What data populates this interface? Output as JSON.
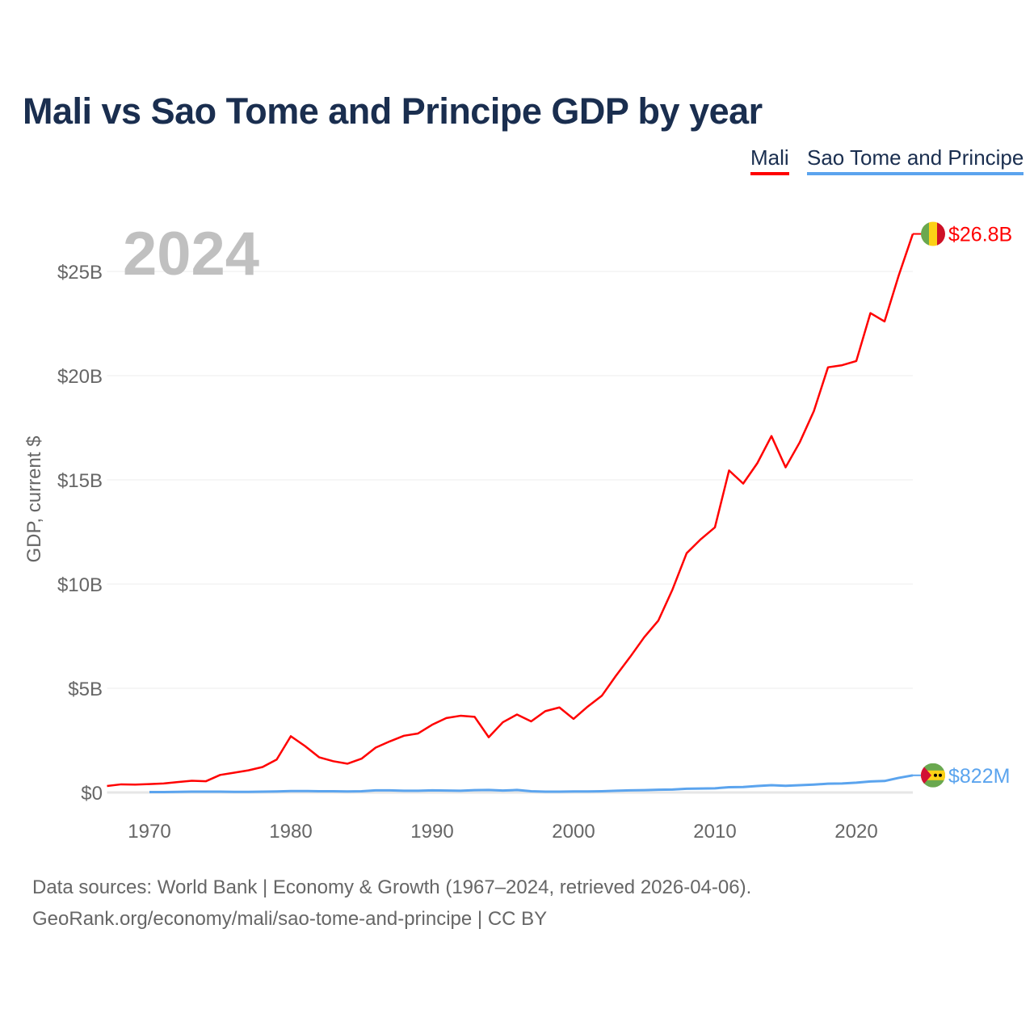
{
  "chart_data": {
    "type": "line",
    "title": "Mali vs Sao Tome and Principe GDP by year",
    "xlabel": "",
    "ylabel": "GDP, current $",
    "xlim": [
      1967,
      2024
    ],
    "ylim": [
      0,
      28
    ],
    "x_ticks": [
      1970,
      1980,
      1990,
      2000,
      2010,
      2020
    ],
    "y_ticks": [
      0,
      5,
      10,
      15,
      20,
      25
    ],
    "y_tick_labels": [
      "$0",
      "$5B",
      "$10B",
      "$15B",
      "$20B",
      "$25B"
    ],
    "year_watermark": "2024",
    "grid": true,
    "legend_position": "top-right",
    "series": [
      {
        "name": "Mali",
        "color": "#ff0000",
        "start_year": 1967,
        "end_label": "$26.8B",
        "flag": "mali-flag",
        "values": [
          0.31,
          0.39,
          0.38,
          0.4,
          0.43,
          0.5,
          0.56,
          0.54,
          0.84,
          0.95,
          1.06,
          1.22,
          1.58,
          2.7,
          2.23,
          1.69,
          1.5,
          1.38,
          1.62,
          2.15,
          2.45,
          2.72,
          2.83,
          3.25,
          3.57,
          3.68,
          3.63,
          2.65,
          3.37,
          3.74,
          3.41,
          3.9,
          4.08,
          3.53,
          4.12,
          4.64,
          5.6,
          6.5,
          7.45,
          8.25,
          9.74,
          11.48,
          12.15,
          12.72,
          15.45,
          14.82,
          15.8,
          17.1,
          15.6,
          16.8,
          18.3,
          20.4,
          20.5,
          20.7,
          23.0,
          22.6,
          24.8,
          26.8
        ]
      },
      {
        "name": "Sao Tome and Principe",
        "color": "#5ba4ee",
        "start_year": 1970,
        "end_label": "$822M",
        "flag": "sao-tome-flag",
        "values": [
          0.02,
          0.02,
          0.03,
          0.04,
          0.04,
          0.04,
          0.03,
          0.03,
          0.04,
          0.05,
          0.07,
          0.07,
          0.06,
          0.06,
          0.05,
          0.06,
          0.1,
          0.1,
          0.08,
          0.08,
          0.1,
          0.09,
          0.08,
          0.11,
          0.12,
          0.09,
          0.12,
          0.06,
          0.04,
          0.04,
          0.05,
          0.05,
          0.06,
          0.08,
          0.1,
          0.11,
          0.13,
          0.14,
          0.18,
          0.19,
          0.2,
          0.25,
          0.26,
          0.31,
          0.35,
          0.32,
          0.35,
          0.38,
          0.42,
          0.43,
          0.47,
          0.53,
          0.55,
          0.7,
          0.822
        ]
      }
    ]
  },
  "footer": {
    "line1": "Data sources: World Bank | Economy & Growth (1967–2024, retrieved 2026-04-06).",
    "line2": "GeoRank.org/economy/mali/sao-tome-and-principe | CC BY"
  }
}
